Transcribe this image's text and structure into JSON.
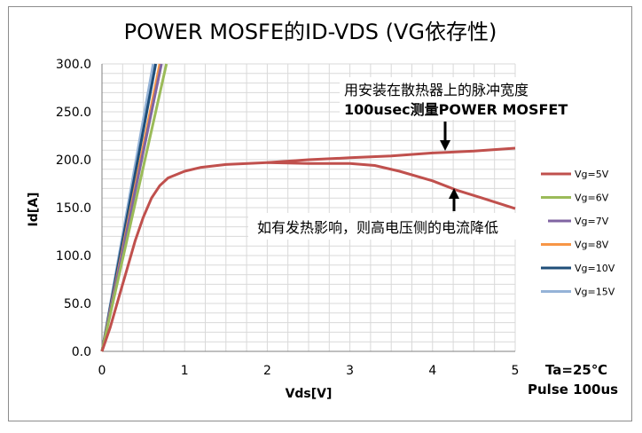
{
  "chart_data": {
    "type": "line",
    "title": "POWER MOSFE的ID-VDS (VG依存性)",
    "xlabel": "Vds[V]",
    "ylabel": "Id[A]",
    "xlim": [
      0,
      5
    ],
    "ylim": [
      0,
      300
    ],
    "xticks": [
      "0",
      "1",
      "2",
      "3",
      "4",
      "5"
    ],
    "yticks": [
      "0.0",
      "50.0",
      "100.0",
      "150.0",
      "200.0",
      "250.0",
      "300.0"
    ],
    "grid": true,
    "legend_position": "right",
    "series": [
      {
        "name": "Vg=5V",
        "color": "#c0504d",
        "points": [
          [
            0,
            0
          ],
          [
            0.1,
            25
          ],
          [
            0.2,
            55
          ],
          [
            0.3,
            85
          ],
          [
            0.4,
            115
          ],
          [
            0.5,
            140
          ],
          [
            0.6,
            160
          ],
          [
            0.7,
            173
          ],
          [
            0.8,
            181
          ],
          [
            1.0,
            188
          ],
          [
            1.2,
            192
          ],
          [
            1.5,
            195
          ],
          [
            2.0,
            197
          ],
          [
            2.5,
            200
          ],
          [
            3.0,
            202
          ],
          [
            3.5,
            204
          ],
          [
            4.0,
            207
          ],
          [
            4.5,
            209
          ],
          [
            5.0,
            212
          ]
        ]
      },
      {
        "name": "Vg=5V",
        "color": "#c0504d",
        "points": [
          [
            2.0,
            197
          ],
          [
            2.5,
            196
          ],
          [
            3.0,
            196
          ],
          [
            3.3,
            194
          ],
          [
            3.6,
            188
          ],
          [
            4.0,
            178
          ],
          [
            4.3,
            168
          ],
          [
            4.6,
            160
          ],
          [
            5.0,
            149
          ]
        ]
      },
      {
        "name": "Vg=6V",
        "color": "#9bbb59",
        "points": [
          [
            0,
            0
          ],
          [
            0.78,
            300
          ]
        ]
      },
      {
        "name": "Vg=7V",
        "color": "#8064a2",
        "points": [
          [
            0,
            0
          ],
          [
            0.72,
            300
          ]
        ]
      },
      {
        "name": "Vg=8V",
        "color": "#f79646",
        "points": [
          [
            0,
            0
          ],
          [
            0.7,
            300
          ]
        ]
      },
      {
        "name": "Vg=10V",
        "color": "#1f4e79",
        "points": [
          [
            0,
            0
          ],
          [
            0.65,
            300
          ]
        ]
      },
      {
        "name": "Vg=15V",
        "color": "#95b3d7",
        "points": [
          [
            0,
            0
          ],
          [
            0.62,
            300
          ]
        ]
      }
    ],
    "legend": [
      {
        "label": "Vg=5V",
        "color": "#c0504d"
      },
      {
        "label": "Vg=6V",
        "color": "#9bbb59"
      },
      {
        "label": "Vg=7V",
        "color": "#8064a2"
      },
      {
        "label": "Vg=8V",
        "color": "#f79646"
      },
      {
        "label": "Vg=10V",
        "color": "#1f4e79"
      },
      {
        "label": "Vg=15V",
        "color": "#95b3d7"
      }
    ],
    "annotations": {
      "top_line1": "用安装在散热器上的脉冲宽度",
      "top_line2": "100usec测量POWER MOSFET",
      "mid": "如有发热影响，则高电压侧的电流降低",
      "cond_temp": "Ta=25℃",
      "cond_pulse": "Pulse 100us"
    }
  }
}
